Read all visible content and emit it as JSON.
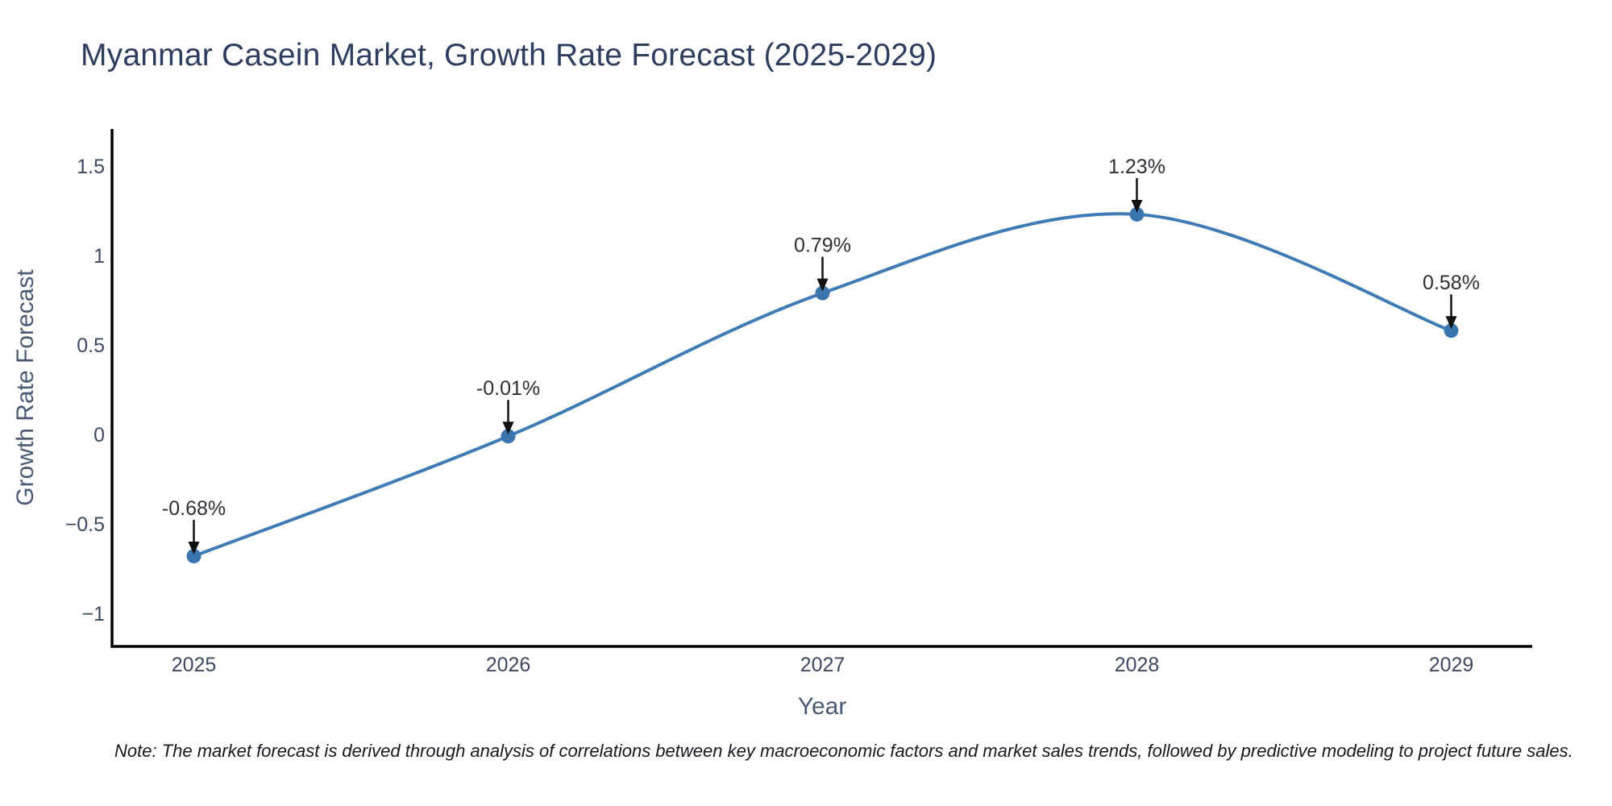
{
  "chart_data": {
    "type": "line",
    "line_shape": "spline",
    "title": "Myanmar Casein Market, Growth Rate Forecast (2025-2029)",
    "xlabel": "Year",
    "ylabel": "Growth Rate Forecast",
    "categories": [
      "2025",
      "2026",
      "2027",
      "2028",
      "2029"
    ],
    "series": [
      {
        "name": "Growth Rate Forecast",
        "x": [
          2025,
          2026,
          2027,
          2028,
          2029
        ],
        "values": [
          -0.68,
          -0.01,
          0.79,
          1.23,
          0.58
        ],
        "data_labels": [
          "-0.68%",
          "-0.01%",
          "0.79%",
          "1.23%",
          "0.58%"
        ]
      }
    ],
    "y_ticks": [
      1.5,
      1,
      0.5,
      0,
      -0.5,
      -1
    ],
    "ylim": [
      -1.19,
      1.7
    ],
    "xlim": [
      2024.74,
      2029.26
    ],
    "grid": false,
    "legend_position": "none",
    "annotations_style": "arrow-down-to-point",
    "note": "Note: The market forecast is derived through analysis of correlations between key macroeconomic factors and market sales trends, followed by predictive modeling to project future sales.",
    "colors": {
      "line": "#3f7cb6",
      "marker": "#3a76ad",
      "axis": "#000000",
      "title": "#2e3d5f",
      "axis_title": "#4a5a74",
      "tick_label": "#3d4a61",
      "annotation_text": "#2c3034",
      "annotation_arrow": "#111111",
      "background": "#ffffff"
    }
  }
}
